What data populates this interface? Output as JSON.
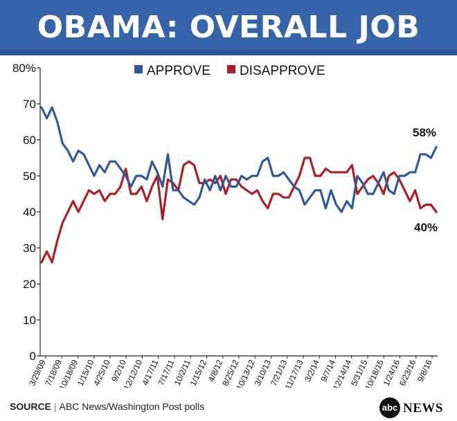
{
  "header": {
    "title": "OBAMA: OVERALL JOB APPROVAL"
  },
  "footer": {
    "source_label": "SOURCE",
    "source_text": "ABC News/Washington Post polls",
    "logo_abc": "abc",
    "logo_news": "NEWS"
  },
  "colors": {
    "banner": "#3763a8",
    "approve": "#2e5a99",
    "disapprove": "#b01e23"
  },
  "chart_data": {
    "type": "line",
    "title": "OBAMA: OVERALL JOB APPROVAL",
    "xlabel": "",
    "ylabel": "",
    "ylim": [
      0,
      80
    ],
    "y_ticks": [
      "0",
      "10",
      "20",
      "30",
      "40",
      "50",
      "60",
      "70",
      "80%"
    ],
    "x_tick_labels": [
      "3/29/09",
      "7/18/09",
      "10/18/09",
      "1/15/10",
      "4/25/10",
      "9/2/10",
      "12/12/10",
      "4/17/11",
      "7/17/11",
      "10/2/11",
      "1/15/12",
      "4/8/12",
      "8/25/12",
      "10/13/12",
      "3/10/13",
      "7/21/13",
      "11/17/13",
      "3/2/14",
      "9/7/14",
      "12/14/14",
      "5/31/15",
      "10/18/15",
      "1/24/16",
      "6/23/16",
      "9/8/16"
    ],
    "legend": [
      "APPROVE",
      "DISAPPROVE"
    ],
    "series": [
      {
        "name": "APPROVE",
        "values": [
          69,
          66,
          69,
          65,
          59,
          57,
          54,
          57,
          56,
          53,
          50,
          53,
          51,
          54,
          54,
          52,
          50,
          47,
          50,
          50,
          49,
          54,
          51,
          47,
          56,
          46,
          46,
          44,
          43,
          42,
          44,
          49,
          46,
          50,
          46,
          50,
          47,
          47,
          50,
          49,
          50,
          50,
          54,
          55,
          50,
          50,
          51,
          49,
          47,
          46,
          42,
          44,
          46,
          46,
          41,
          46,
          42,
          40,
          43,
          41,
          50,
          48,
          45,
          45,
          48,
          51,
          46,
          45,
          50,
          50,
          51,
          51,
          56,
          56,
          55,
          58
        ]
      },
      {
        "name": "DISAPPROVE",
        "values": [
          26,
          29,
          26,
          32,
          37,
          40,
          43,
          40,
          43,
          46,
          45,
          46,
          43,
          45,
          45,
          47,
          52,
          45,
          45,
          47,
          43,
          47,
          50,
          38,
          49,
          48,
          46,
          53,
          54,
          53,
          48,
          48,
          49,
          48,
          50,
          45,
          49,
          49,
          47,
          46,
          45,
          46,
          43,
          41,
          45,
          45,
          44,
          44,
          47,
          50,
          55,
          55,
          50,
          50,
          52,
          51,
          51,
          51,
          51,
          53,
          45,
          47,
          49,
          50,
          48,
          45,
          50,
          51,
          49,
          46,
          43,
          46,
          41,
          42,
          42,
          40
        ]
      }
    ],
    "end_labels": {
      "approve": "58%",
      "disapprove": "40%"
    }
  }
}
